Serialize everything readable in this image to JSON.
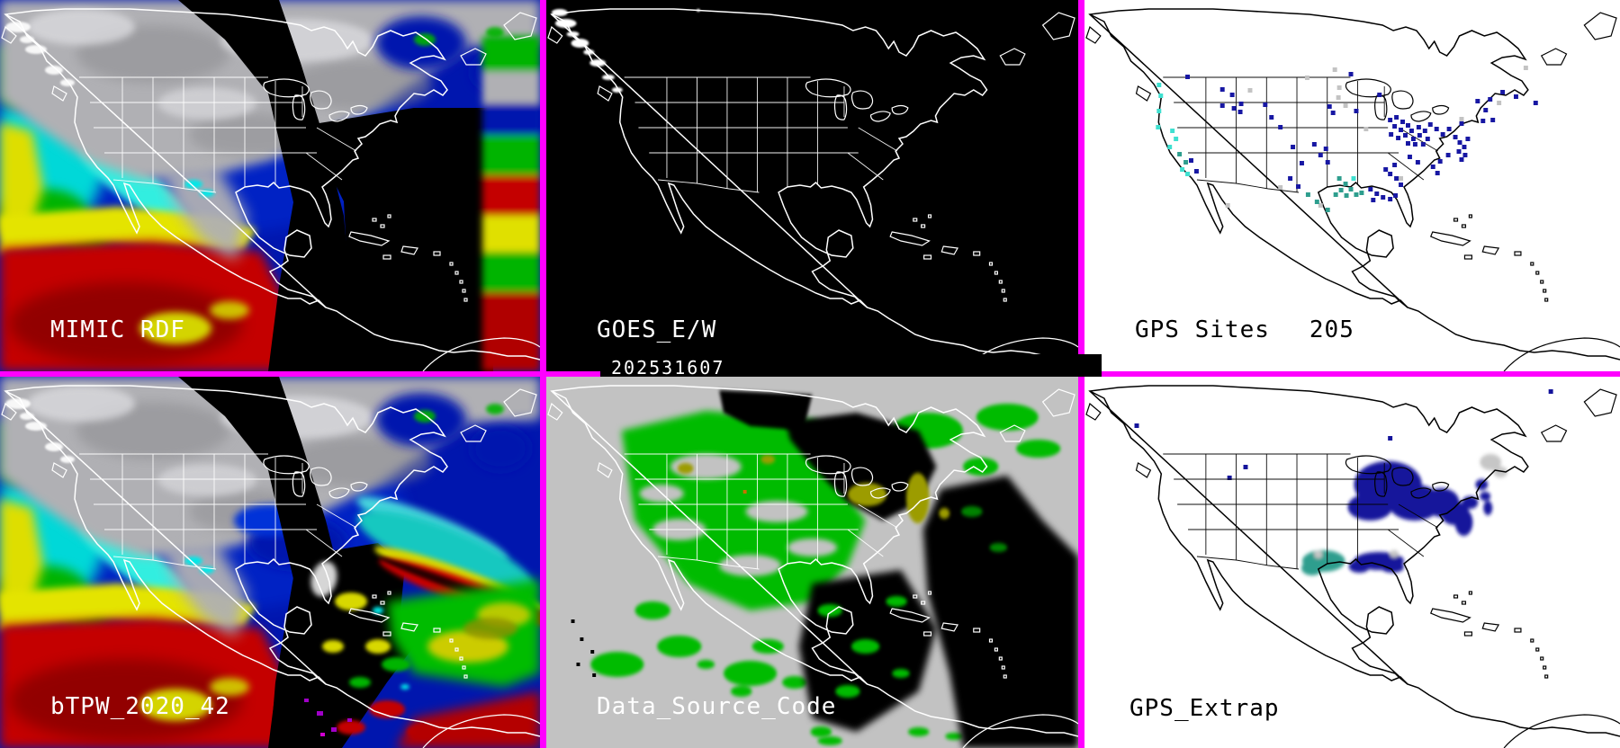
{
  "layout": {
    "border_color": "#ff00ff",
    "grid": "3 columns x 2 rows of map panels"
  },
  "panels": {
    "mimic_rdf": {
      "label": "MIMIC RDF"
    },
    "goes": {
      "label": "GOES_E/W",
      "timestamp": "202531607"
    },
    "gps_sites": {
      "label": "GPS Sites",
      "count": "205"
    },
    "btpw": {
      "label": "bTPW_2020_42"
    },
    "data_source_code": {
      "label": "Data_Source_Code"
    },
    "gps_extrap": {
      "label": "GPS_Extrap"
    }
  },
  "palette": {
    "border_magenta": "#ff00ff",
    "tpw_navy": "#0016ae",
    "tpw_cyan": "#00d8d8",
    "tpw_green": "#00b400",
    "tpw_yellow": "#e4e400",
    "tpw_red": "#c40000",
    "tpw_dark_red": "#8a0000",
    "cloud_gray": "#b0b0b4",
    "missing_black": "#000000",
    "dsc_background": "#c2c2c2",
    "dsc_green": "#00bb00",
    "dsc_olive": "#9c9c00",
    "map_outline_dark_panels": "#ffffff",
    "map_outline_light_panels": "#000000"
  },
  "gps_sites_dots": {
    "size": 5,
    "colors": {
      "n": "#1717a3",
      "t": "#2e9e8e",
      "c": "#3fe0d0",
      "g": "#c3c3c3"
    },
    "points": [
      [
        81,
        92,
        "c"
      ],
      [
        83,
        104,
        "c"
      ],
      [
        81,
        121,
        "c"
      ],
      [
        80,
        139,
        "c"
      ],
      [
        96,
        143,
        "c"
      ],
      [
        100,
        152,
        "c"
      ],
      [
        93,
        161,
        "c"
      ],
      [
        104,
        169,
        "t"
      ],
      [
        111,
        178,
        "t"
      ],
      [
        107,
        186,
        "c"
      ],
      [
        117,
        176,
        "n"
      ],
      [
        113,
        191,
        "c"
      ],
      [
        123,
        188,
        "n"
      ],
      [
        183,
        98,
        "g"
      ],
      [
        283,
        95,
        "g"
      ],
      [
        282,
        106,
        "g"
      ],
      [
        278,
        75,
        "g"
      ],
      [
        290,
        115,
        "g"
      ],
      [
        247,
        84,
        "g"
      ],
      [
        313,
        141,
        "g"
      ],
      [
        352,
        196,
        "g"
      ],
      [
        492,
        73,
        "g"
      ],
      [
        217,
        206,
        "g"
      ],
      [
        262,
        226,
        "g"
      ],
      [
        462,
        112,
        "g"
      ],
      [
        420,
        130,
        "g"
      ],
      [
        158,
        226,
        "g"
      ],
      [
        152,
        97,
        "n"
      ],
      [
        163,
        103,
        "n"
      ],
      [
        152,
        115,
        "n"
      ],
      [
        165,
        118,
        "n"
      ],
      [
        173,
        113,
        "n"
      ],
      [
        172,
        122,
        "n"
      ],
      [
        113,
        83,
        "n"
      ],
      [
        200,
        114,
        "n"
      ],
      [
        207,
        128,
        "n"
      ],
      [
        217,
        139,
        "n"
      ],
      [
        231,
        161,
        "n"
      ],
      [
        272,
        116,
        "n"
      ],
      [
        276,
        123,
        "n"
      ],
      [
        268,
        163,
        "n"
      ],
      [
        241,
        179,
        "n"
      ],
      [
        296,
        80,
        "n"
      ],
      [
        328,
        103,
        "n"
      ],
      [
        302,
        121,
        "n"
      ],
      [
        255,
        158,
        "n"
      ],
      [
        262,
        170,
        "n"
      ],
      [
        270,
        178,
        "n"
      ],
      [
        340,
        131,
        "n"
      ],
      [
        347,
        128,
        "n"
      ],
      [
        354,
        133,
        "n"
      ],
      [
        345,
        138,
        "n"
      ],
      [
        352,
        142,
        "n"
      ],
      [
        360,
        137,
        "n"
      ],
      [
        341,
        147,
        "n"
      ],
      [
        349,
        151,
        "n"
      ],
      [
        357,
        148,
        "n"
      ],
      [
        364,
        143,
        "n"
      ],
      [
        366,
        152,
        "n"
      ],
      [
        372,
        139,
        "n"
      ],
      [
        373,
        148,
        "n"
      ],
      [
        379,
        143,
        "n"
      ],
      [
        382,
        152,
        "n"
      ],
      [
        360,
        157,
        "n"
      ],
      [
        368,
        158,
        "n"
      ],
      [
        377,
        158,
        "n"
      ],
      [
        385,
        136,
        "n"
      ],
      [
        392,
        141,
        "n"
      ],
      [
        399,
        147,
        "n"
      ],
      [
        406,
        141,
        "n"
      ],
      [
        420,
        135,
        "n"
      ],
      [
        413,
        150,
        "n"
      ],
      [
        418,
        156,
        "n"
      ],
      [
        423,
        161,
        "n"
      ],
      [
        417,
        166,
        "n"
      ],
      [
        424,
        170,
        "n"
      ],
      [
        420,
        175,
        "n"
      ],
      [
        427,
        152,
        "n"
      ],
      [
        405,
        170,
        "n"
      ],
      [
        396,
        177,
        "n"
      ],
      [
        388,
        183,
        "n"
      ],
      [
        362,
        172,
        "n"
      ],
      [
        371,
        178,
        "n"
      ],
      [
        345,
        181,
        "n"
      ],
      [
        438,
        110,
        "n"
      ],
      [
        447,
        120,
        "n"
      ],
      [
        455,
        131,
        "n"
      ],
      [
        444,
        132,
        "n"
      ],
      [
        452,
        108,
        "n"
      ],
      [
        466,
        100,
        "n"
      ],
      [
        481,
        105,
        "n"
      ],
      [
        503,
        112,
        "n"
      ],
      [
        340,
        191,
        "n"
      ],
      [
        347,
        196,
        "n"
      ],
      [
        352,
        203,
        "n"
      ],
      [
        393,
        190,
        "n"
      ],
      [
        335,
        186,
        "n"
      ],
      [
        283,
        196,
        "t"
      ],
      [
        290,
        202,
        "t"
      ],
      [
        285,
        209,
        "t"
      ],
      [
        296,
        208,
        "t"
      ],
      [
        302,
        214,
        "t"
      ],
      [
        291,
        215,
        "t"
      ],
      [
        279,
        214,
        "t"
      ],
      [
        308,
        212,
        "t"
      ],
      [
        299,
        196,
        "c"
      ],
      [
        318,
        208,
        "n"
      ],
      [
        325,
        213,
        "n"
      ],
      [
        332,
        217,
        "n"
      ],
      [
        321,
        220,
        "n"
      ],
      [
        340,
        219,
        "n"
      ],
      [
        346,
        215,
        "n"
      ],
      [
        237,
        205,
        "n"
      ],
      [
        248,
        214,
        "t"
      ],
      [
        228,
        196,
        "n"
      ],
      [
        258,
        222,
        "t"
      ],
      [
        270,
        231,
        "t"
      ]
    ]
  },
  "gps_extrap_blobs": {
    "colors": {
      "n": "#14149b",
      "t": "#2e9e8e",
      "g": "#c6c6c6"
    },
    "ellipses": [
      [
        340,
        120,
        38,
        26,
        "n"
      ],
      [
        370,
        140,
        30,
        20,
        "n"
      ],
      [
        320,
        145,
        25,
        15,
        "n"
      ],
      [
        400,
        140,
        20,
        16,
        "n"
      ],
      [
        415,
        152,
        16,
        13,
        "n"
      ],
      [
        425,
        162,
        10,
        15,
        "n"
      ],
      [
        432,
        140,
        9,
        7,
        "n"
      ],
      [
        445,
        120,
        7,
        6,
        "n"
      ],
      [
        449,
        133,
        6,
        5,
        "n"
      ],
      [
        452,
        146,
        5,
        8,
        "n"
      ],
      [
        330,
        205,
        28,
        10,
        "n"
      ],
      [
        308,
        211,
        12,
        7,
        "n"
      ],
      [
        345,
        212,
        13,
        6,
        "n"
      ],
      [
        268,
        205,
        24,
        12,
        "t"
      ],
      [
        255,
        213,
        12,
        8,
        "t"
      ],
      [
        455,
        95,
        12,
        9,
        "g"
      ],
      [
        466,
        106,
        8,
        6,
        "g"
      ],
      [
        262,
        198,
        5,
        4,
        "g"
      ],
      [
        347,
        197,
        5,
        4,
        "g"
      ]
    ],
    "squares": [
      [
        178,
        98,
        "n"
      ],
      [
        56,
        52,
        "n"
      ],
      [
        340,
        66,
        "n"
      ],
      [
        520,
        14,
        "n"
      ],
      [
        160,
        110,
        "n"
      ]
    ]
  }
}
